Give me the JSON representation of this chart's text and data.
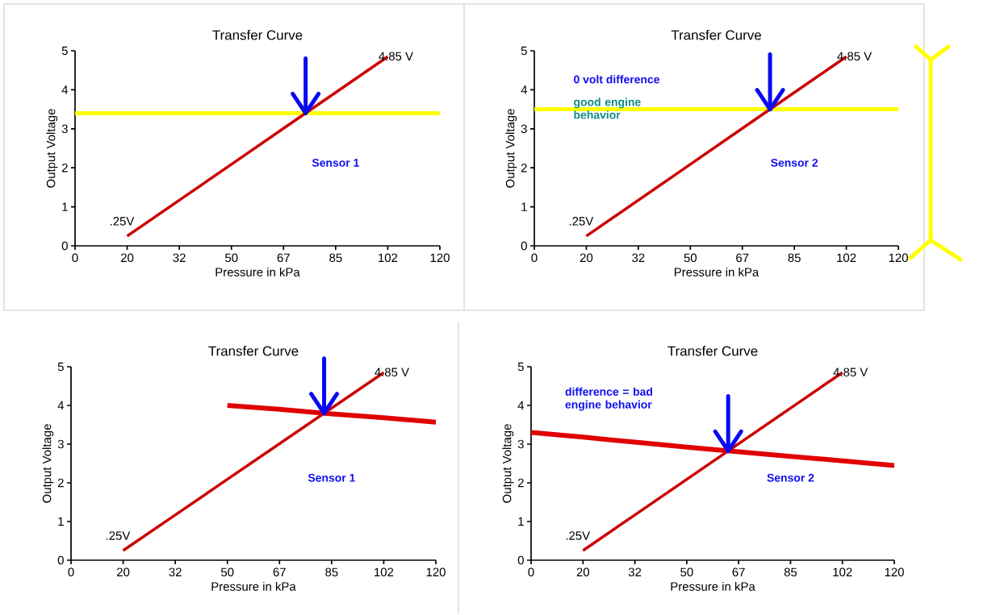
{
  "chart_data": [
    {
      "type": "line",
      "title": "Transfer Curve",
      "xlabel": "Pressure in kPa",
      "ylabel": "Output Voltage",
      "categories": [
        "0",
        "20",
        "32",
        "50",
        "67",
        "85",
        "102",
        "120"
      ],
      "ylim": [
        0,
        5
      ],
      "yticks": [
        0,
        1,
        2,
        3,
        4,
        5
      ],
      "series": [
        {
          "name": "Sensor 1",
          "color": "#cc0000",
          "values": [
            null,
            0.25,
            1.17,
            2.09,
            3.01,
            3.93,
            4.85,
            null
          ]
        }
      ],
      "ref_lines": [
        {
          "axis": "y",
          "value": 3.4,
          "color": "#ffff00"
        }
      ],
      "annotations": [
        {
          "text": ".25V",
          "x": "20",
          "y": 0.25
        },
        {
          "text": "4.85 V",
          "x": "102",
          "y": 4.85
        }
      ]
    },
    {
      "type": "line",
      "title": "Transfer Curve",
      "xlabel": "Pressure in kPa",
      "ylabel": "Output Voltage",
      "categories": [
        "0",
        "20",
        "32",
        "50",
        "67",
        "85",
        "102",
        "120"
      ],
      "ylim": [
        0,
        5
      ],
      "yticks": [
        0,
        1,
        2,
        3,
        4,
        5
      ],
      "series": [
        {
          "name": "Sensor 2",
          "color": "#cc0000",
          "values": [
            null,
            0.25,
            1.17,
            2.09,
            3.01,
            3.93,
            4.85,
            null
          ]
        }
      ],
      "ref_lines": [
        {
          "axis": "y",
          "value": 3.5,
          "color": "#ffff00"
        }
      ],
      "annotations": [
        "0 volt difference",
        "good engine behavior",
        {
          "text": ".25V",
          "x": "20",
          "y": 0.25
        },
        {
          "text": "4.85 V",
          "x": "102",
          "y": 4.85
        }
      ]
    },
    {
      "type": "line",
      "title": "Transfer Curve",
      "xlabel": "Pressure in kPa",
      "ylabel": "Output Voltage",
      "categories": [
        "0",
        "20",
        "32",
        "50",
        "67",
        "85",
        "102",
        "120"
      ],
      "ylim": [
        0,
        5
      ],
      "yticks": [
        0,
        1,
        2,
        3,
        4,
        5
      ],
      "series": [
        {
          "name": "Sensor 1",
          "color": "#cc0000",
          "values": [
            null,
            0.25,
            1.17,
            2.09,
            3.01,
            3.93,
            4.85,
            null
          ]
        },
        {
          "color": "#e00000",
          "values": [
            null,
            null,
            null,
            4.0,
            3.9,
            3.78,
            3.68,
            3.57
          ]
        }
      ],
      "annotations": [
        {
          "text": ".25V",
          "x": "20",
          "y": 0.25
        },
        {
          "text": "4.85 V",
          "x": "102",
          "y": 4.85
        }
      ]
    },
    {
      "type": "line",
      "title": "Transfer Curve",
      "xlabel": "Pressure in kPa",
      "ylabel": "Output Voltage",
      "categories": [
        "0",
        "20",
        "32",
        "50",
        "67",
        "85",
        "102",
        "120"
      ],
      "ylim": [
        0,
        5
      ],
      "yticks": [
        0,
        1,
        2,
        3,
        4,
        5
      ],
      "series": [
        {
          "name": "Sensor 2",
          "color": "#cc0000",
          "values": [
            null,
            0.25,
            1.17,
            2.09,
            3.01,
            3.93,
            4.85,
            null
          ]
        },
        {
          "color": "#e00000",
          "values": [
            3.3,
            3.18,
            3.05,
            2.92,
            2.8,
            2.68,
            2.57,
            2.45
          ]
        }
      ],
      "annotations": [
        "difference = bad engine behavior",
        {
          "text": ".25V",
          "x": "20",
          "y": 0.25
        },
        {
          "text": "4.85 V",
          "x": "102",
          "y": 4.85
        }
      ]
    }
  ]
}
